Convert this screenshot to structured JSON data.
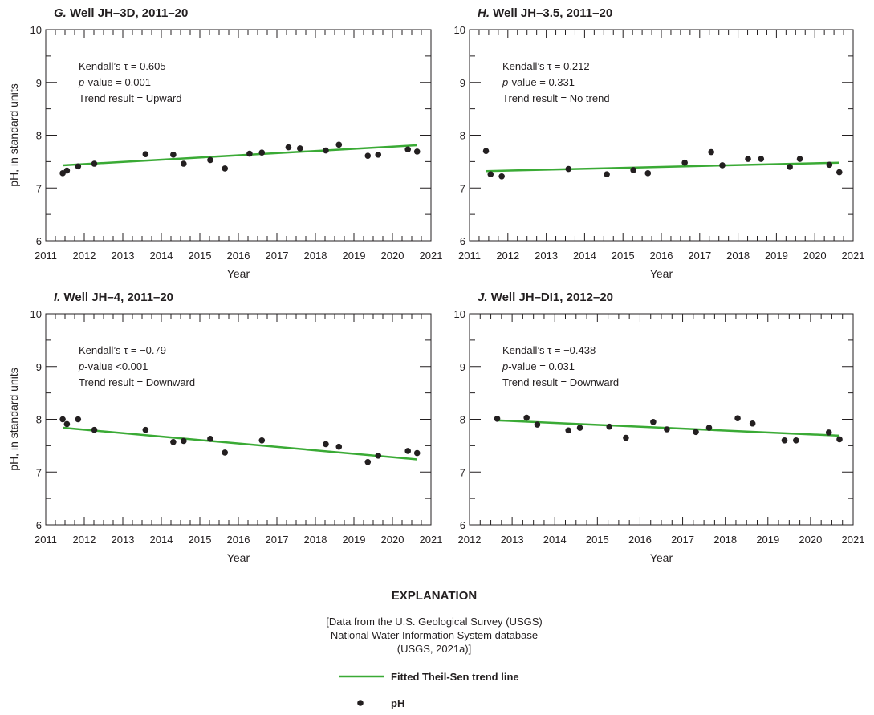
{
  "colors": {
    "trend": "#3aaa35",
    "point": "#231f20",
    "axis": "#231f20"
  },
  "chart_data": [
    {
      "type": "scatter",
      "panel_letter": "G.",
      "title": "Well JH–3D, 2011–20",
      "xlabel": "Year",
      "ylabel": "pH, in standard units",
      "xlim": [
        2011,
        2021
      ],
      "ylim": [
        6,
        10
      ],
      "xticks": [
        "2011",
        "2012",
        "2013",
        "2014",
        "2015",
        "2016",
        "2017",
        "2018",
        "2019",
        "2020",
        "2021"
      ],
      "yticks": [
        "6",
        "7",
        "8",
        "9",
        "10"
      ],
      "annotation": {
        "kendall": "Kendall’s τ = 0.605",
        "p_prefix": "p",
        "p_rest": "-value = 0.001",
        "trend": "Trend result = Upward"
      },
      "trendline": {
        "x": [
          2011.44,
          2020.64
        ],
        "y": [
          7.43,
          7.81
        ]
      },
      "points": {
        "x": [
          2011.44,
          2011.55,
          2011.84,
          2012.26,
          2013.59,
          2014.31,
          2014.58,
          2015.27,
          2015.65,
          2016.29,
          2016.61,
          2017.3,
          2017.6,
          2018.27,
          2018.61,
          2019.36,
          2019.63,
          2020.4,
          2020.64
        ],
        "y": [
          7.28,
          7.33,
          7.41,
          7.46,
          7.64,
          7.63,
          7.46,
          7.53,
          7.37,
          7.65,
          7.67,
          7.77,
          7.75,
          7.71,
          7.82,
          7.61,
          7.63,
          7.73,
          7.69
        ]
      }
    },
    {
      "type": "scatter",
      "panel_letter": "H.",
      "title": "Well JH–3.5, 2011–20",
      "xlabel": "Year",
      "ylabel": "",
      "xlim": [
        2011,
        2021
      ],
      "ylim": [
        6,
        10
      ],
      "xticks": [
        "2011",
        "2012",
        "2013",
        "2014",
        "2015",
        "2016",
        "2017",
        "2018",
        "2019",
        "2020",
        "2021"
      ],
      "yticks": [
        "6",
        "7",
        "8",
        "9",
        "10"
      ],
      "annotation": {
        "kendall": "Kendall’s τ = 0.212",
        "p_prefix": "p",
        "p_rest": "-value = 0.331",
        "trend": "Trend result = No trend"
      },
      "trendline": {
        "x": [
          2011.43,
          2020.64
        ],
        "y": [
          7.32,
          7.48
        ]
      },
      "points": {
        "x": [
          2011.43,
          2011.55,
          2011.84,
          2013.58,
          2014.58,
          2015.27,
          2015.65,
          2016.61,
          2017.3,
          2017.59,
          2018.26,
          2018.6,
          2019.35,
          2019.61,
          2020.38,
          2020.64
        ],
        "y": [
          7.7,
          7.26,
          7.22,
          7.36,
          7.26,
          7.34,
          7.28,
          7.48,
          7.68,
          7.43,
          7.55,
          7.55,
          7.4,
          7.55,
          7.44,
          7.3
        ]
      }
    },
    {
      "type": "scatter",
      "panel_letter": "I.",
      "title": "Well JH–4, 2011–20",
      "xlabel": "Year",
      "ylabel": "pH, in standard units",
      "xlim": [
        2011,
        2021
      ],
      "ylim": [
        6,
        10
      ],
      "xticks": [
        "2011",
        "2012",
        "2013",
        "2014",
        "2015",
        "2016",
        "2017",
        "2018",
        "2019",
        "2020",
        "2021"
      ],
      "yticks": [
        "6",
        "7",
        "8",
        "9",
        "10"
      ],
      "annotation": {
        "kendall": "Kendall’s τ = −0.79",
        "p_prefix": "p",
        "p_rest": "-value <0.001",
        "trend": "Trend result = Downward"
      },
      "trendline": {
        "x": [
          2011.44,
          2020.64
        ],
        "y": [
          7.84,
          7.24
        ]
      },
      "points": {
        "x": [
          2011.44,
          2011.55,
          2011.84,
          2012.26,
          2013.59,
          2014.31,
          2014.58,
          2015.27,
          2015.65,
          2016.61,
          2018.27,
          2018.61,
          2019.36,
          2019.63,
          2020.4,
          2020.64
        ],
        "y": [
          8.0,
          7.91,
          8.0,
          7.8,
          7.8,
          7.57,
          7.59,
          7.63,
          7.37,
          7.6,
          7.53,
          7.48,
          7.19,
          7.31,
          7.4,
          7.36
        ]
      }
    },
    {
      "type": "scatter",
      "panel_letter": "J.",
      "title": "Well JH–DI1, 2012–20",
      "xlabel": "Year",
      "ylabel": "",
      "xlim": [
        2012,
        2021
      ],
      "ylim": [
        6,
        10
      ],
      "xticks": [
        "2012",
        "2013",
        "2014",
        "2015",
        "2016",
        "2017",
        "2018",
        "2019",
        "2020",
        "2021"
      ],
      "yticks": [
        "6",
        "7",
        "8",
        "9",
        "10"
      ],
      "annotation": {
        "kendall": "Kendall’s τ = −0.438",
        "p_prefix": "p",
        "p_rest": "-value = 0.031",
        "trend": "Trend result = Downward"
      },
      "trendline": {
        "x": [
          2012.65,
          2020.68
        ],
        "y": [
          7.98,
          7.69
        ]
      },
      "points": {
        "x": [
          2012.65,
          2013.34,
          2013.59,
          2014.32,
          2014.59,
          2015.28,
          2015.67,
          2016.31,
          2016.63,
          2017.31,
          2017.62,
          2018.29,
          2018.64,
          2019.39,
          2019.66,
          2020.43,
          2020.68
        ],
        "y": [
          8.01,
          8.03,
          7.9,
          7.79,
          7.84,
          7.86,
          7.65,
          7.95,
          7.81,
          7.76,
          7.84,
          8.02,
          7.92,
          7.6,
          7.6,
          7.75,
          7.62
        ]
      }
    }
  ],
  "explanation": {
    "heading": "EXPLANATION",
    "source_lines": [
      "[Data from the U.S. Geological Survey (USGS)",
      "National Water Information System database",
      "(USGS, 2021a)]"
    ],
    "legend": [
      {
        "symbol": "line",
        "label": "Fitted Theil-Sen trend line"
      },
      {
        "symbol": "dot",
        "label": "pH"
      }
    ]
  }
}
